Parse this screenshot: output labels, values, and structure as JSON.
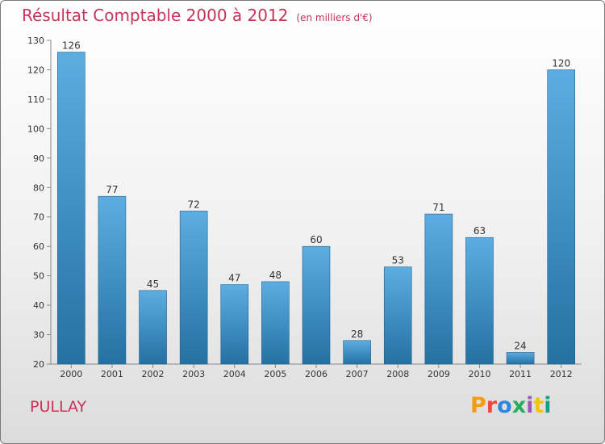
{
  "header": {
    "title": "Résultat Comptable 2000 à 2012",
    "subtitle": "(en milliers d'€)"
  },
  "footer": {
    "commune": "PULLAY",
    "logo": "Proxiti",
    "logo_colors": [
      "#f39c12",
      "#e74c3c",
      "#2e86de",
      "#27ae60",
      "#9b59b6",
      "#f1c40f",
      "#16a085"
    ]
  },
  "colors": {
    "title": "#c8335a",
    "bar_top": "#5dade2",
    "bar_bottom": "#2471a3",
    "bar_edge": "#1f5f8b"
  },
  "chart_data": {
    "type": "bar",
    "title": "Résultat Comptable 2000 à 2012",
    "xlabel": "",
    "ylabel": "",
    "categories": [
      "2000",
      "2001",
      "2002",
      "2003",
      "2004",
      "2005",
      "2006",
      "2007",
      "2008",
      "2009",
      "2010",
      "2011",
      "2012"
    ],
    "values": [
      126,
      77,
      45,
      72,
      47,
      48,
      60,
      28,
      53,
      71,
      63,
      24,
      120
    ],
    "ylim": [
      20,
      130
    ],
    "yticks": [
      20,
      30,
      40,
      50,
      60,
      70,
      80,
      90,
      100,
      110,
      120,
      130
    ],
    "grid": false
  }
}
